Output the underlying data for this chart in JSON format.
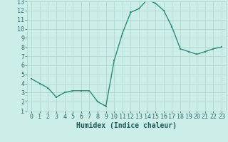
{
  "x": [
    0,
    1,
    2,
    3,
    4,
    5,
    6,
    7,
    8,
    9,
    10,
    11,
    12,
    13,
    14,
    15,
    16,
    17,
    18,
    19,
    20,
    21,
    22,
    23
  ],
  "y": [
    4.5,
    4.0,
    3.5,
    2.5,
    3.0,
    3.2,
    3.2,
    3.2,
    2.0,
    1.5,
    6.5,
    9.5,
    11.8,
    12.2,
    13.2,
    12.8,
    12.0,
    10.2,
    7.8,
    7.5,
    7.2,
    7.5,
    7.8,
    8.0
  ],
  "xlabel": "Humidex (Indice chaleur)",
  "ylim": [
    1,
    13
  ],
  "xlim": [
    -0.5,
    23.5
  ],
  "line_color": "#2e8b7a",
  "bg_color": "#cceee8",
  "grid_color": "#aad4cc",
  "tick_color": "#2e6b6a",
  "xlabel_color": "#1a5a5a",
  "xlabel_fontsize": 7,
  "tick_fontsize": 6
}
